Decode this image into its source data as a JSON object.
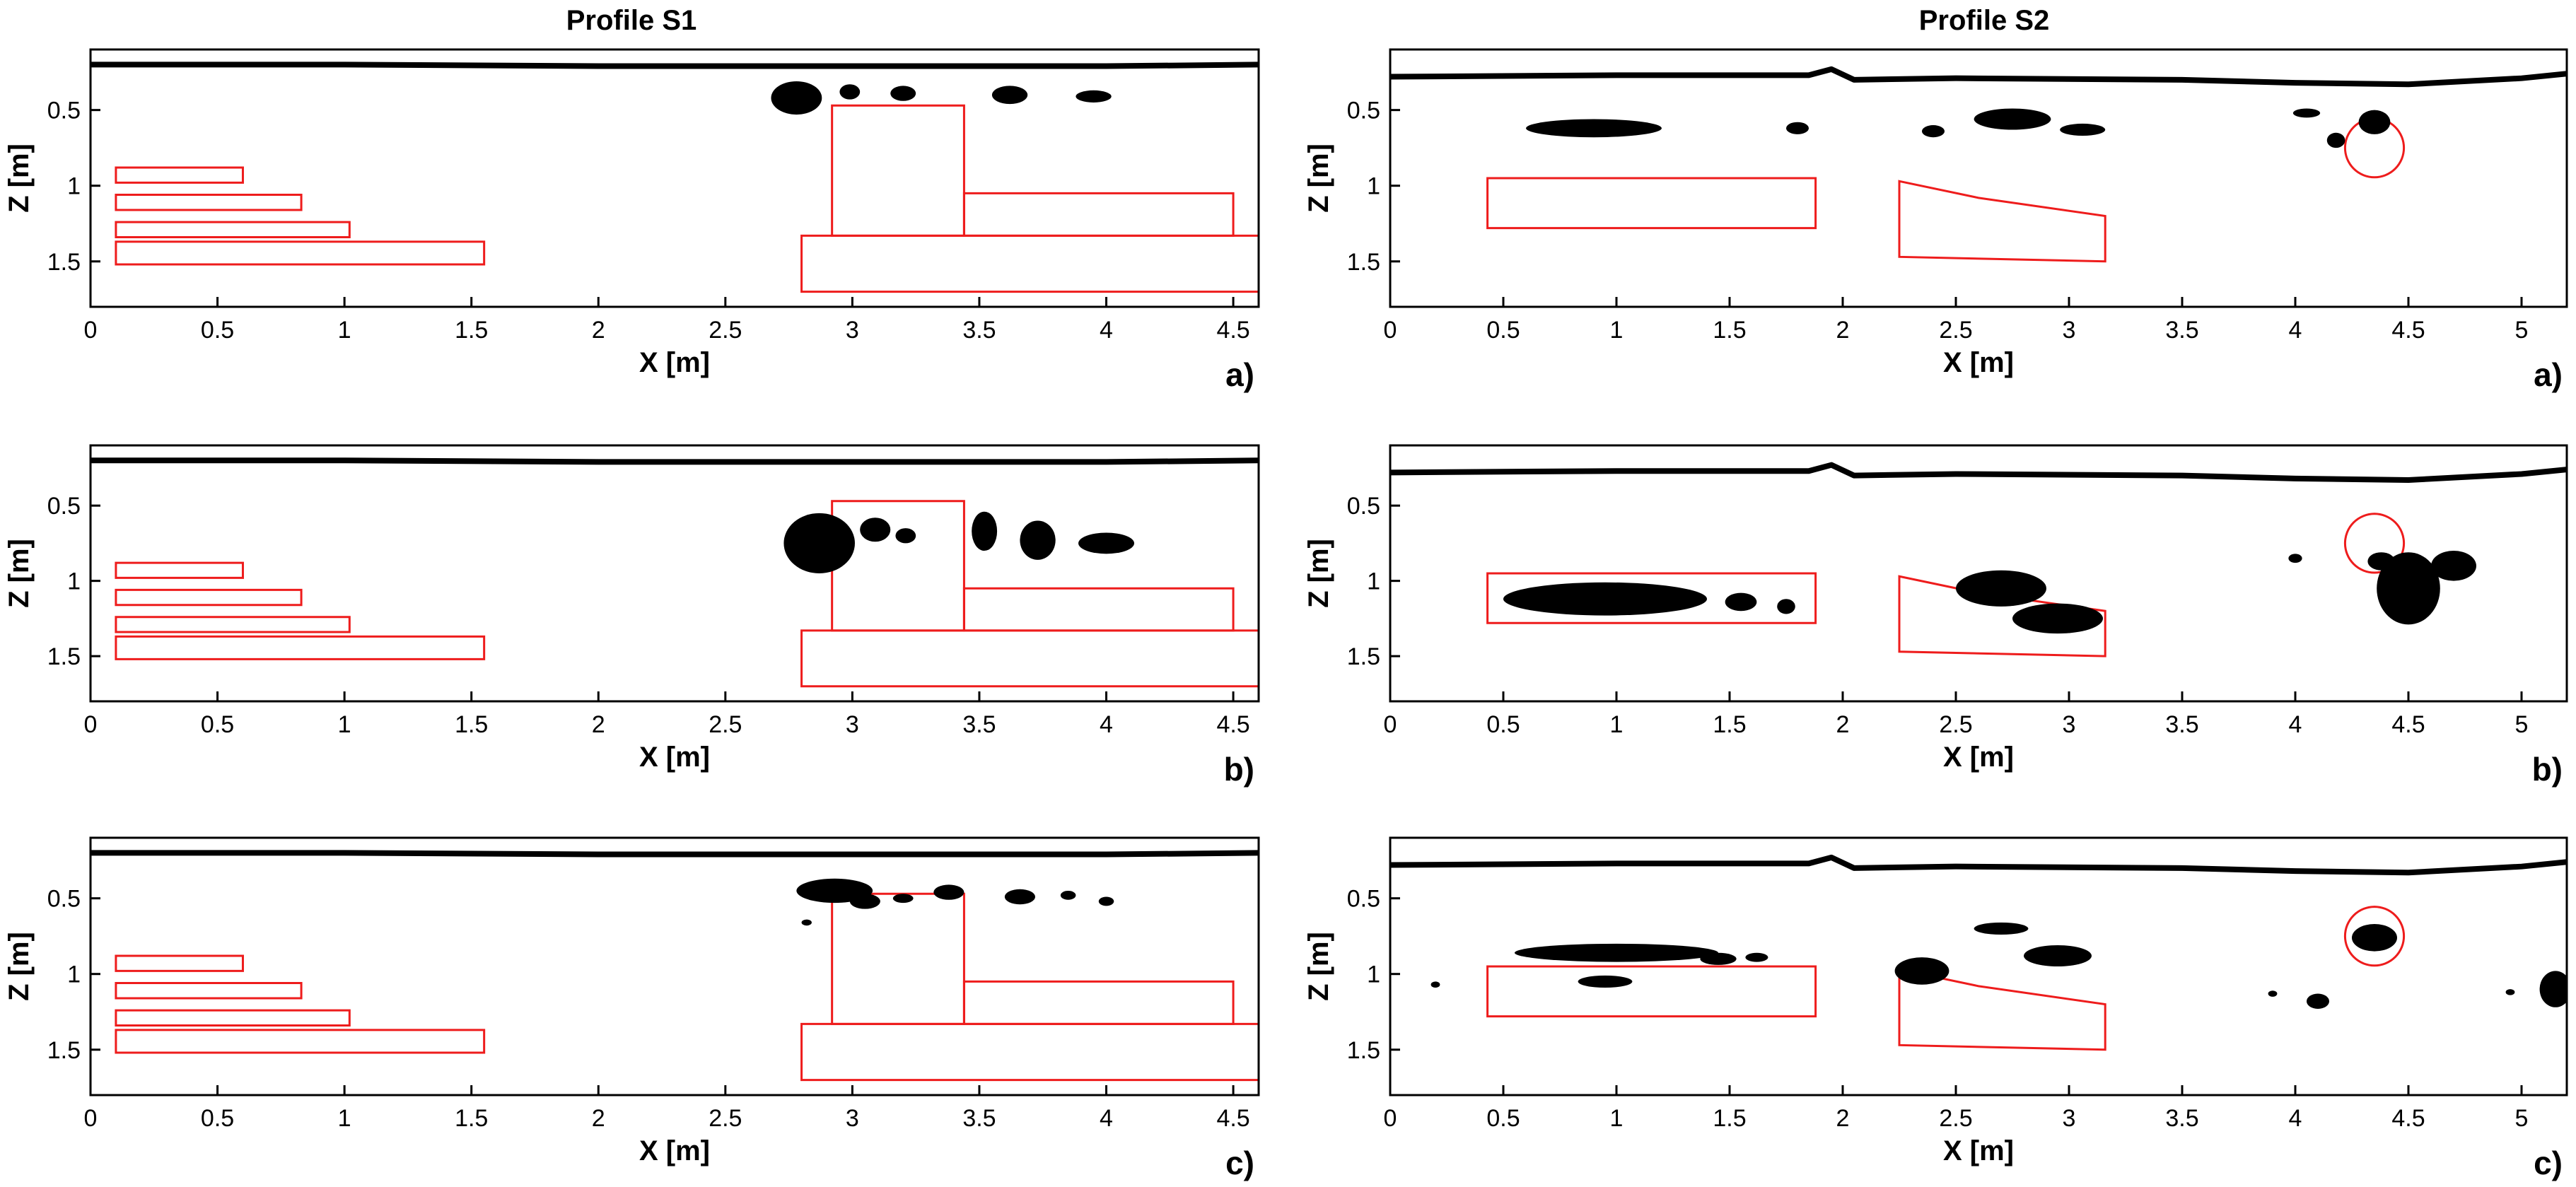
{
  "figure": {
    "columns": [
      {
        "title": "Profile S1"
      },
      {
        "title": "Profile S2"
      }
    ]
  },
  "chart_data": [
    {
      "type": "scatter",
      "profile": "Profile S1",
      "panel": "a)",
      "xlabel": "X [m]",
      "ylabel": "Z [m]",
      "xlim": [
        0,
        4.6
      ],
      "ylim": [
        0.1,
        1.8
      ],
      "y_inverted": true,
      "xticks": [
        "0",
        "0.5",
        "1",
        "1.5",
        "2",
        "2.5",
        "3",
        "3.5",
        "4",
        "4.5"
      ],
      "yticks": [
        "0.5",
        "1",
        "1.5"
      ],
      "surface": {
        "x": [
          0,
          1.0,
          2.0,
          3.0,
          4.0,
          4.6
        ],
        "z": [
          0.2,
          0.2,
          0.21,
          0.21,
          0.21,
          0.2
        ]
      },
      "targets": [
        {
          "shape": "poly",
          "x": [
            0.1,
            0.6,
            0.6,
            0.1
          ],
          "z": [
            0.88,
            0.88,
            0.98,
            0.98
          ]
        },
        {
          "shape": "poly",
          "x": [
            0.1,
            0.83,
            0.83,
            0.1
          ],
          "z": [
            1.06,
            1.06,
            1.16,
            1.16
          ]
        },
        {
          "shape": "poly",
          "x": [
            0.1,
            1.02,
            1.02,
            0.1
          ],
          "z": [
            1.24,
            1.24,
            1.34,
            1.34
          ]
        },
        {
          "shape": "poly",
          "x": [
            0.1,
            1.55,
            1.55,
            0.1
          ],
          "z": [
            1.37,
            1.37,
            1.52,
            1.52
          ]
        },
        {
          "shape": "poly",
          "x": [
            2.92,
            3.44,
            3.44,
            2.92
          ],
          "z": [
            0.47,
            0.47,
            1.33,
            1.33
          ]
        },
        {
          "shape": "poly",
          "x": [
            3.44,
            4.5,
            4.5,
            3.44
          ],
          "z": [
            1.05,
            1.05,
            1.33,
            1.33
          ]
        },
        {
          "shape": "poly",
          "x": [
            2.8,
            4.6,
            4.6,
            2.8
          ],
          "z": [
            1.33,
            1.33,
            1.7,
            1.7
          ]
        }
      ],
      "anomalies": [
        {
          "x": 2.78,
          "z": 0.42,
          "rx": 0.1,
          "rz": 0.11
        },
        {
          "x": 2.99,
          "z": 0.38,
          "rx": 0.04,
          "rz": 0.05
        },
        {
          "x": 3.2,
          "z": 0.39,
          "rx": 0.05,
          "rz": 0.05
        },
        {
          "x": 3.62,
          "z": 0.4,
          "rx": 0.07,
          "rz": 0.06
        },
        {
          "x": 3.95,
          "z": 0.41,
          "rx": 0.07,
          "rz": 0.04
        }
      ]
    },
    {
      "type": "scatter",
      "profile": "Profile S2",
      "panel": "a)",
      "xlabel": "X [m]",
      "ylabel": "Z [m]",
      "xlim": [
        0,
        5.2
      ],
      "ylim": [
        0.1,
        1.8
      ],
      "y_inverted": true,
      "xticks": [
        "0",
        "0.5",
        "1",
        "1.5",
        "2",
        "2.5",
        "3",
        "3.5",
        "4",
        "4.5",
        "5"
      ],
      "yticks": [
        "0.5",
        "1",
        "1.5"
      ],
      "surface": {
        "x": [
          0,
          1.0,
          1.85,
          1.95,
          2.05,
          2.5,
          3.5,
          4.0,
          4.5,
          5.0,
          5.2
        ],
        "z": [
          0.28,
          0.27,
          0.27,
          0.23,
          0.3,
          0.29,
          0.3,
          0.32,
          0.33,
          0.29,
          0.26
        ]
      },
      "targets": [
        {
          "shape": "poly",
          "x": [
            0.43,
            1.88,
            1.88,
            0.43
          ],
          "z": [
            0.95,
            0.95,
            1.28,
            1.28
          ]
        },
        {
          "shape": "poly",
          "x": [
            2.25,
            2.6,
            3.16,
            3.16,
            2.25
          ],
          "z": [
            0.97,
            1.08,
            1.2,
            1.5,
            1.47
          ]
        },
        {
          "shape": "circle",
          "x": 4.35,
          "z": 0.75,
          "r": 0.13
        }
      ],
      "anomalies": [
        {
          "x": 0.9,
          "z": 0.62,
          "rx": 0.3,
          "rz": 0.06
        },
        {
          "x": 1.8,
          "z": 0.62,
          "rx": 0.05,
          "rz": 0.04
        },
        {
          "x": 2.4,
          "z": 0.64,
          "rx": 0.05,
          "rz": 0.04
        },
        {
          "x": 2.75,
          "z": 0.56,
          "rx": 0.17,
          "rz": 0.07
        },
        {
          "x": 3.06,
          "z": 0.63,
          "rx": 0.1,
          "rz": 0.04
        },
        {
          "x": 4.05,
          "z": 0.52,
          "rx": 0.06,
          "rz": 0.03
        },
        {
          "x": 4.35,
          "z": 0.58,
          "rx": 0.07,
          "rz": 0.08
        },
        {
          "x": 4.18,
          "z": 0.7,
          "rx": 0.04,
          "rz": 0.05
        }
      ]
    },
    {
      "type": "scatter",
      "profile": "Profile S1",
      "panel": "b)",
      "xlabel": "X [m]",
      "ylabel": "Z [m]",
      "xlim": [
        0,
        4.6
      ],
      "ylim": [
        0.1,
        1.8
      ],
      "y_inverted": true,
      "xticks": [
        "0",
        "0.5",
        "1",
        "1.5",
        "2",
        "2.5",
        "3",
        "3.5",
        "4",
        "4.5"
      ],
      "yticks": [
        "0.5",
        "1",
        "1.5"
      ],
      "surface": {
        "x": [
          0,
          1.0,
          2.0,
          3.0,
          4.0,
          4.6
        ],
        "z": [
          0.2,
          0.2,
          0.21,
          0.21,
          0.21,
          0.2
        ]
      },
      "targets": [
        {
          "shape": "poly",
          "x": [
            0.1,
            0.6,
            0.6,
            0.1
          ],
          "z": [
            0.88,
            0.88,
            0.98,
            0.98
          ]
        },
        {
          "shape": "poly",
          "x": [
            0.1,
            0.83,
            0.83,
            0.1
          ],
          "z": [
            1.06,
            1.06,
            1.16,
            1.16
          ]
        },
        {
          "shape": "poly",
          "x": [
            0.1,
            1.02,
            1.02,
            0.1
          ],
          "z": [
            1.24,
            1.24,
            1.34,
            1.34
          ]
        },
        {
          "shape": "poly",
          "x": [
            0.1,
            1.55,
            1.55,
            0.1
          ],
          "z": [
            1.37,
            1.37,
            1.52,
            1.52
          ]
        },
        {
          "shape": "poly",
          "x": [
            2.92,
            3.44,
            3.44,
            2.92
          ],
          "z": [
            0.47,
            0.47,
            1.33,
            1.33
          ]
        },
        {
          "shape": "poly",
          "x": [
            3.44,
            4.5,
            4.5,
            3.44
          ],
          "z": [
            1.05,
            1.05,
            1.33,
            1.33
          ]
        },
        {
          "shape": "poly",
          "x": [
            2.8,
            4.6,
            4.6,
            2.8
          ],
          "z": [
            1.33,
            1.33,
            1.7,
            1.7
          ]
        }
      ],
      "anomalies": [
        {
          "x": 2.87,
          "z": 0.75,
          "rx": 0.14,
          "rz": 0.2
        },
        {
          "x": 3.09,
          "z": 0.66,
          "rx": 0.06,
          "rz": 0.08
        },
        {
          "x": 3.21,
          "z": 0.7,
          "rx": 0.04,
          "rz": 0.05
        },
        {
          "x": 3.52,
          "z": 0.67,
          "rx": 0.05,
          "rz": 0.13
        },
        {
          "x": 3.73,
          "z": 0.73,
          "rx": 0.07,
          "rz": 0.13
        },
        {
          "x": 4.0,
          "z": 0.75,
          "rx": 0.11,
          "rz": 0.07
        }
      ]
    },
    {
      "type": "scatter",
      "profile": "Profile S2",
      "panel": "b)",
      "xlabel": "X [m]",
      "ylabel": "Z [m]",
      "xlim": [
        0,
        5.2
      ],
      "ylim": [
        0.1,
        1.8
      ],
      "y_inverted": true,
      "xticks": [
        "0",
        "0.5",
        "1",
        "1.5",
        "2",
        "2.5",
        "3",
        "3.5",
        "4",
        "4.5",
        "5"
      ],
      "yticks": [
        "0.5",
        "1",
        "1.5"
      ],
      "surface": {
        "x": [
          0,
          1.0,
          1.85,
          1.95,
          2.05,
          2.5,
          3.5,
          4.0,
          4.5,
          5.0,
          5.2
        ],
        "z": [
          0.28,
          0.27,
          0.27,
          0.23,
          0.3,
          0.29,
          0.3,
          0.32,
          0.33,
          0.29,
          0.26
        ]
      },
      "targets": [
        {
          "shape": "poly",
          "x": [
            0.43,
            1.88,
            1.88,
            0.43
          ],
          "z": [
            0.95,
            0.95,
            1.28,
            1.28
          ]
        },
        {
          "shape": "poly",
          "x": [
            2.25,
            2.6,
            3.16,
            3.16,
            2.25
          ],
          "z": [
            0.97,
            1.08,
            1.2,
            1.5,
            1.47
          ]
        },
        {
          "shape": "circle",
          "x": 4.35,
          "z": 0.75,
          "r": 0.13
        }
      ],
      "anomalies": [
        {
          "x": 0.95,
          "z": 1.12,
          "rx": 0.45,
          "rz": 0.11
        },
        {
          "x": 1.55,
          "z": 1.14,
          "rx": 0.07,
          "rz": 0.06
        },
        {
          "x": 1.75,
          "z": 1.17,
          "rx": 0.04,
          "rz": 0.05
        },
        {
          "x": 2.7,
          "z": 1.05,
          "rx": 0.2,
          "rz": 0.12
        },
        {
          "x": 2.95,
          "z": 1.25,
          "rx": 0.2,
          "rz": 0.1
        },
        {
          "x": 4.5,
          "z": 1.05,
          "rx": 0.14,
          "rz": 0.24
        },
        {
          "x": 4.7,
          "z": 0.9,
          "rx": 0.1,
          "rz": 0.1
        },
        {
          "x": 4.38,
          "z": 0.87,
          "rx": 0.06,
          "rz": 0.06
        },
        {
          "x": 4.0,
          "z": 0.85,
          "rx": 0.03,
          "rz": 0.03
        }
      ]
    },
    {
      "type": "scatter",
      "profile": "Profile S1",
      "panel": "c)",
      "xlabel": "X [m]",
      "ylabel": "Z [m]",
      "xlim": [
        0,
        4.6
      ],
      "ylim": [
        0.1,
        1.8
      ],
      "y_inverted": true,
      "xticks": [
        "0",
        "0.5",
        "1",
        "1.5",
        "2",
        "2.5",
        "3",
        "3.5",
        "4",
        "4.5"
      ],
      "yticks": [
        "0.5",
        "1",
        "1.5"
      ],
      "surface": {
        "x": [
          0,
          1.0,
          2.0,
          3.0,
          4.0,
          4.6
        ],
        "z": [
          0.2,
          0.2,
          0.21,
          0.21,
          0.21,
          0.2
        ]
      },
      "targets": [
        {
          "shape": "poly",
          "x": [
            0.1,
            0.6,
            0.6,
            0.1
          ],
          "z": [
            0.88,
            0.88,
            0.98,
            0.98
          ]
        },
        {
          "shape": "poly",
          "x": [
            0.1,
            0.83,
            0.83,
            0.1
          ],
          "z": [
            1.06,
            1.06,
            1.16,
            1.16
          ]
        },
        {
          "shape": "poly",
          "x": [
            0.1,
            1.02,
            1.02,
            0.1
          ],
          "z": [
            1.24,
            1.24,
            1.34,
            1.34
          ]
        },
        {
          "shape": "poly",
          "x": [
            0.1,
            1.55,
            1.55,
            0.1
          ],
          "z": [
            1.37,
            1.37,
            1.52,
            1.52
          ]
        },
        {
          "shape": "poly",
          "x": [
            2.92,
            3.44,
            3.44,
            2.92
          ],
          "z": [
            0.47,
            0.47,
            1.33,
            1.33
          ]
        },
        {
          "shape": "poly",
          "x": [
            3.44,
            4.5,
            4.5,
            3.44
          ],
          "z": [
            1.05,
            1.05,
            1.33,
            1.33
          ]
        },
        {
          "shape": "poly",
          "x": [
            2.8,
            4.6,
            4.6,
            2.8
          ],
          "z": [
            1.33,
            1.33,
            1.7,
            1.7
          ]
        }
      ],
      "anomalies": [
        {
          "x": 2.93,
          "z": 0.45,
          "rx": 0.15,
          "rz": 0.08
        },
        {
          "x": 3.05,
          "z": 0.52,
          "rx": 0.06,
          "rz": 0.05
        },
        {
          "x": 3.2,
          "z": 0.5,
          "rx": 0.04,
          "rz": 0.03
        },
        {
          "x": 3.38,
          "z": 0.46,
          "rx": 0.06,
          "rz": 0.05
        },
        {
          "x": 3.66,
          "z": 0.49,
          "rx": 0.06,
          "rz": 0.05
        },
        {
          "x": 3.85,
          "z": 0.48,
          "rx": 0.03,
          "rz": 0.03
        },
        {
          "x": 4.0,
          "z": 0.52,
          "rx": 0.03,
          "rz": 0.03
        },
        {
          "x": 2.82,
          "z": 0.66,
          "rx": 0.02,
          "rz": 0.02
        }
      ]
    },
    {
      "type": "scatter",
      "profile": "Profile S2",
      "panel": "c)",
      "xlabel": "X [m]",
      "ylabel": "Z [m]",
      "xlim": [
        0,
        5.2
      ],
      "ylim": [
        0.1,
        1.8
      ],
      "y_inverted": true,
      "xticks": [
        "0",
        "0.5",
        "1",
        "1.5",
        "2",
        "2.5",
        "3",
        "3.5",
        "4",
        "4.5",
        "5"
      ],
      "yticks": [
        "0.5",
        "1",
        "1.5"
      ],
      "surface": {
        "x": [
          0,
          1.0,
          1.85,
          1.95,
          2.05,
          2.5,
          3.5,
          4.0,
          4.5,
          5.0,
          5.2
        ],
        "z": [
          0.28,
          0.27,
          0.27,
          0.23,
          0.3,
          0.29,
          0.3,
          0.32,
          0.33,
          0.29,
          0.26
        ]
      },
      "targets": [
        {
          "shape": "poly",
          "x": [
            0.43,
            1.88,
            1.88,
            0.43
          ],
          "z": [
            0.95,
            0.95,
            1.28,
            1.28
          ]
        },
        {
          "shape": "poly",
          "x": [
            2.25,
            2.6,
            3.16,
            3.16,
            2.25
          ],
          "z": [
            0.97,
            1.08,
            1.2,
            1.5,
            1.47
          ]
        },
        {
          "shape": "circle",
          "x": 4.35,
          "z": 0.75,
          "r": 0.13
        }
      ],
      "anomalies": [
        {
          "x": 1.0,
          "z": 0.86,
          "rx": 0.45,
          "rz": 0.06
        },
        {
          "x": 1.45,
          "z": 0.9,
          "rx": 0.08,
          "rz": 0.04
        },
        {
          "x": 1.62,
          "z": 0.89,
          "rx": 0.05,
          "rz": 0.03
        },
        {
          "x": 0.95,
          "z": 1.05,
          "rx": 0.12,
          "rz": 0.04
        },
        {
          "x": 0.2,
          "z": 1.07,
          "rx": 0.02,
          "rz": 0.02
        },
        {
          "x": 2.35,
          "z": 0.98,
          "rx": 0.12,
          "rz": 0.09
        },
        {
          "x": 2.7,
          "z": 0.7,
          "rx": 0.12,
          "rz": 0.04
        },
        {
          "x": 2.95,
          "z": 0.88,
          "rx": 0.15,
          "rz": 0.07
        },
        {
          "x": 4.35,
          "z": 0.76,
          "rx": 0.1,
          "rz": 0.09
        },
        {
          "x": 4.1,
          "z": 1.18,
          "rx": 0.05,
          "rz": 0.05
        },
        {
          "x": 3.9,
          "z": 1.13,
          "rx": 0.02,
          "rz": 0.02
        },
        {
          "x": 5.15,
          "z": 1.1,
          "rx": 0.07,
          "rz": 0.12
        },
        {
          "x": 4.95,
          "z": 1.12,
          "rx": 0.02,
          "rz": 0.02
        }
      ]
    }
  ]
}
